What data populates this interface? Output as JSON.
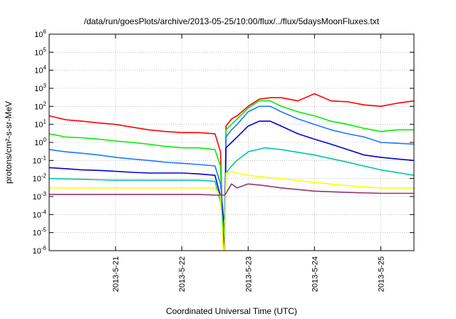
{
  "chart_data": {
    "type": "line",
    "title": "/data/run/goesPlots/archive/2013-05-25/10:00/flux/../flux/5daysMoonFluxes.txt",
    "xlabel": "Coordinated Universal Time (UTC)",
    "ylabel": "protons/cm²-s-sr-MeV",
    "y_scale": "log",
    "ylim_exp": [
      -6,
      6
    ],
    "y_tick_exponents": [
      -6,
      -5,
      -4,
      -3,
      -2,
      -1,
      0,
      1,
      2,
      3,
      4,
      5,
      6
    ],
    "x_range": [
      "2013-05-20 00:00",
      "2013-05-25 12:00"
    ],
    "x_ticks": [
      {
        "date": "2013-05-21",
        "label": "2013-5-21"
      },
      {
        "date": "2013-05-22",
        "label": "2013-5-22"
      },
      {
        "date": "2013-05-23",
        "label": "2013-5-23"
      },
      {
        "date": "2013-05-24",
        "label": "2013-5-24"
      },
      {
        "date": "2013-05-25",
        "label": "2013-5-25"
      }
    ],
    "grid": true,
    "series": [
      {
        "color": "#ff0000",
        "x": [
          "2013-05-20 00:00",
          "2013-05-20 06:00",
          "2013-05-20 12:00",
          "2013-05-20 18:00",
          "2013-05-21 00:00",
          "2013-05-21 06:00",
          "2013-05-21 12:00",
          "2013-05-21 18:00",
          "2013-05-22 00:00",
          "2013-05-22 06:00",
          "2013-05-22 12:00",
          "2013-05-22 14:00",
          "2013-05-22 15:00",
          "2013-05-22 15:30",
          "2013-05-22 16:00",
          "2013-05-22 18:00",
          "2013-05-22 20:00",
          "2013-05-23 00:00",
          "2013-05-23 04:00",
          "2013-05-23 08:00",
          "2013-05-23 12:00",
          "2013-05-23 18:00",
          "2013-05-24 00:00",
          "2013-05-24 06:00",
          "2013-05-24 12:00",
          "2013-05-24 18:00",
          "2013-05-25 00:00",
          "2013-05-25 06:00",
          "2013-05-25 12:00"
        ],
        "y": [
          30,
          18,
          15,
          12,
          10,
          7,
          5,
          4,
          3.5,
          3.5,
          3,
          0.3,
          1e-06,
          1e-06,
          8,
          20,
          30,
          100,
          250,
          300,
          300,
          200,
          500,
          200,
          180,
          120,
          100,
          150,
          200
        ]
      },
      {
        "color": "#00ee00",
        "x": [
          "2013-05-20 00:00",
          "2013-05-20 06:00",
          "2013-05-20 12:00",
          "2013-05-20 18:00",
          "2013-05-21 00:00",
          "2013-05-21 06:00",
          "2013-05-21 12:00",
          "2013-05-21 18:00",
          "2013-05-22 00:00",
          "2013-05-22 06:00",
          "2013-05-22 12:00",
          "2013-05-22 14:00",
          "2013-05-22 15:00",
          "2013-05-22 15:30",
          "2013-05-22 16:00",
          "2013-05-22 18:00",
          "2013-05-22 20:00",
          "2013-05-23 00:00",
          "2013-05-23 04:00",
          "2013-05-23 08:00",
          "2013-05-23 12:00",
          "2013-05-23 18:00",
          "2013-05-24 00:00",
          "2013-05-24 06:00",
          "2013-05-24 12:00",
          "2013-05-24 18:00",
          "2013-05-25 00:00",
          "2013-05-25 06:00",
          "2013-05-25 12:00"
        ],
        "y": [
          3,
          2,
          1.8,
          1.5,
          1.2,
          1,
          0.8,
          0.6,
          0.5,
          0.5,
          0.4,
          0.05,
          1e-06,
          1e-06,
          5,
          10,
          20,
          80,
          200,
          200,
          100,
          50,
          30,
          15,
          10,
          6,
          4,
          5,
          5
        ]
      },
      {
        "color": "#1e78ff",
        "x": [
          "2013-05-20 00:00",
          "2013-05-20 06:00",
          "2013-05-20 12:00",
          "2013-05-20 18:00",
          "2013-05-21 00:00",
          "2013-05-21 06:00",
          "2013-05-21 12:00",
          "2013-05-21 18:00",
          "2013-05-22 00:00",
          "2013-05-22 06:00",
          "2013-05-22 12:00",
          "2013-05-22 14:00",
          "2013-05-22 15:00",
          "2013-05-22 15:30",
          "2013-05-22 16:00",
          "2013-05-22 18:00",
          "2013-05-22 20:00",
          "2013-05-23 00:00",
          "2013-05-23 04:00",
          "2013-05-23 08:00",
          "2013-05-23 12:00",
          "2013-05-23 18:00",
          "2013-05-24 00:00",
          "2013-05-24 06:00",
          "2013-05-24 12:00",
          "2013-05-24 18:00",
          "2013-05-25 00:00",
          "2013-05-25 06:00",
          "2013-05-25 12:00"
        ],
        "y": [
          0.4,
          0.3,
          0.25,
          0.2,
          0.15,
          0.12,
          0.1,
          0.08,
          0.07,
          0.06,
          0.05,
          0.005,
          0.0001,
          5e-05,
          2,
          5,
          10,
          50,
          100,
          100,
          50,
          20,
          10,
          5,
          3,
          2,
          1,
          0.9,
          0.8
        ]
      },
      {
        "color": "#0000dd",
        "x": [
          "2013-05-20 00:00",
          "2013-05-20 06:00",
          "2013-05-20 12:00",
          "2013-05-20 18:00",
          "2013-05-21 00:00",
          "2013-05-21 06:00",
          "2013-05-21 12:00",
          "2013-05-21 18:00",
          "2013-05-22 00:00",
          "2013-05-22 06:00",
          "2013-05-22 12:00",
          "2013-05-22 14:00",
          "2013-05-22 15:00",
          "2013-05-22 15:30",
          "2013-05-22 16:00",
          "2013-05-22 18:00",
          "2013-05-22 20:00",
          "2013-05-23 00:00",
          "2013-05-23 04:00",
          "2013-05-23 08:00",
          "2013-05-23 12:00",
          "2013-05-23 18:00",
          "2013-05-24 00:00",
          "2013-05-24 06:00",
          "2013-05-24 12:00",
          "2013-05-24 18:00",
          "2013-05-25 00:00",
          "2013-05-25 06:00",
          "2013-05-25 12:00"
        ],
        "y": [
          0.04,
          0.035,
          0.03,
          0.028,
          0.025,
          0.022,
          0.02,
          0.02,
          0.02,
          0.018,
          0.015,
          0.001,
          5e-05,
          1e-06,
          0.5,
          1,
          2,
          8,
          15,
          15,
          8,
          3,
          1.5,
          0.8,
          0.4,
          0.2,
          0.15,
          0.12,
          0.1
        ]
      },
      {
        "color": "#00c8a0",
        "x": [
          "2013-05-20 00:00",
          "2013-05-20 12:00",
          "2013-05-21 00:00",
          "2013-05-21 12:00",
          "2013-05-22 00:00",
          "2013-05-22 06:00",
          "2013-05-22 12:00",
          "2013-05-22 14:00",
          "2013-05-22 15:00",
          "2013-05-22 15:30",
          "2013-05-22 16:00",
          "2013-05-22 18:00",
          "2013-05-22 20:00",
          "2013-05-23 00:00",
          "2013-05-23 06:00",
          "2013-05-23 12:00",
          "2013-05-24 00:00",
          "2013-05-24 12:00",
          "2013-05-25 00:00",
          "2013-05-25 12:00"
        ],
        "y": [
          0.01,
          0.009,
          0.008,
          0.008,
          0.008,
          0.008,
          0.007,
          0.0005,
          2e-05,
          6e-06,
          0.02,
          0.05,
          0.1,
          0.3,
          0.5,
          0.4,
          0.2,
          0.08,
          0.03,
          0.015
        ]
      },
      {
        "color": "#ffff00",
        "x": [
          "2013-05-20 00:00",
          "2013-05-20 12:00",
          "2013-05-21 00:00",
          "2013-05-21 12:00",
          "2013-05-22 00:00",
          "2013-05-22 06:00",
          "2013-05-22 12:00",
          "2013-05-22 14:00",
          "2013-05-22 15:00",
          "2013-05-22 15:30",
          "2013-05-22 16:00",
          "2013-05-22 18:00",
          "2013-05-22 20:00",
          "2013-05-23 00:00",
          "2013-05-23 06:00",
          "2013-05-23 12:00",
          "2013-05-24 00:00",
          "2013-05-24 12:00",
          "2013-05-25 00:00",
          "2013-05-25 12:00"
        ],
        "y": [
          0.003,
          0.003,
          0.003,
          0.003,
          0.003,
          0.003,
          0.003,
          0.001,
          1e-06,
          1e-06,
          0.02,
          0.025,
          0.02,
          0.015,
          0.012,
          0.01,
          0.006,
          0.004,
          0.003,
          0.003
        ]
      },
      {
        "color": "#993366",
        "x": [
          "2013-05-20 00:00",
          "2013-05-20 12:00",
          "2013-05-21 00:00",
          "2013-05-21 12:00",
          "2013-05-22 00:00",
          "2013-05-22 06:00",
          "2013-05-22 12:00",
          "2013-05-22 14:00",
          "2013-05-22 15:00",
          "2013-05-22 15:30",
          "2013-05-22 16:00",
          "2013-05-22 18:00",
          "2013-05-22 20:00",
          "2013-05-23 00:00",
          "2013-05-23 06:00",
          "2013-05-23 12:00",
          "2013-05-24 00:00",
          "2013-05-24 12:00",
          "2013-05-25 00:00",
          "2013-05-25 12:00"
        ],
        "y": [
          0.0013,
          0.0013,
          0.0013,
          0.0013,
          0.0013,
          0.0013,
          0.0012,
          0.0012,
          0.0012,
          0.0012,
          0.0015,
          0.005,
          0.003,
          0.005,
          0.004,
          0.003,
          0.002,
          0.0017,
          0.0015,
          0.0015
        ]
      }
    ]
  }
}
